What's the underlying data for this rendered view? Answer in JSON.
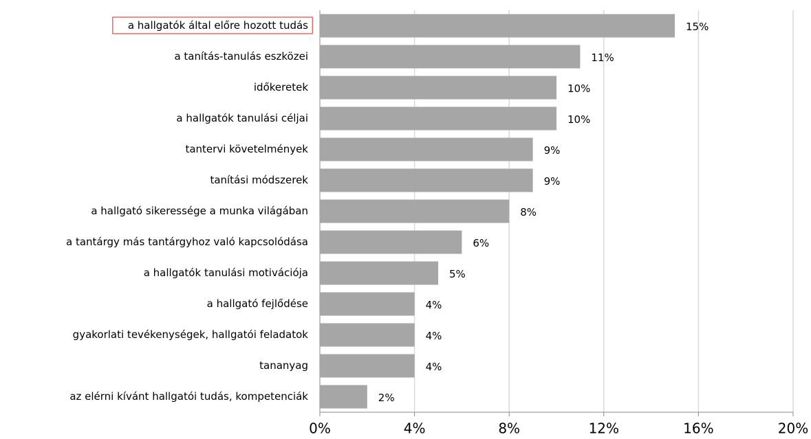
{
  "chart_data": {
    "type": "hbar",
    "categories": [
      "a hallgatók által előre hozott tudás",
      "a tanítás-tanulás eszközei",
      "időkeretek",
      "a hallgatók tanulási céljai",
      "tantervi követelmények",
      "tanítási módszerek",
      "a hallgató sikeressége a munka világában",
      "a tantárgy más tantárgyhoz való kapcsolódása",
      "a hallgatók tanulási motivációja",
      "a hallgató fejlődése",
      "gyakorlati tevékenységek, hallgatói feladatok",
      "tananyag",
      "az elérni kívánt hallgatói tudás, kompetenciák"
    ],
    "values": [
      15,
      11,
      10,
      10,
      9,
      9,
      8,
      6,
      5,
      4,
      4,
      4,
      2
    ],
    "value_labels": [
      "15%",
      "11%",
      "10%",
      "10%",
      "9%",
      "9%",
      "8%",
      "6%",
      "5%",
      "4%",
      "4%",
      "4%",
      "2%"
    ],
    "color": "#a6a6a6",
    "xlim": [
      0,
      20
    ],
    "xticks": [
      {
        "value": 0,
        "label": "0%"
      },
      {
        "value": 4,
        "label": "4%"
      },
      {
        "value": 8,
        "label": "8%"
      },
      {
        "value": 12,
        "label": "12%"
      },
      {
        "value": 16,
        "label": "16%"
      },
      {
        "value": 20,
        "label": "20%"
      }
    ],
    "grid": true
  }
}
